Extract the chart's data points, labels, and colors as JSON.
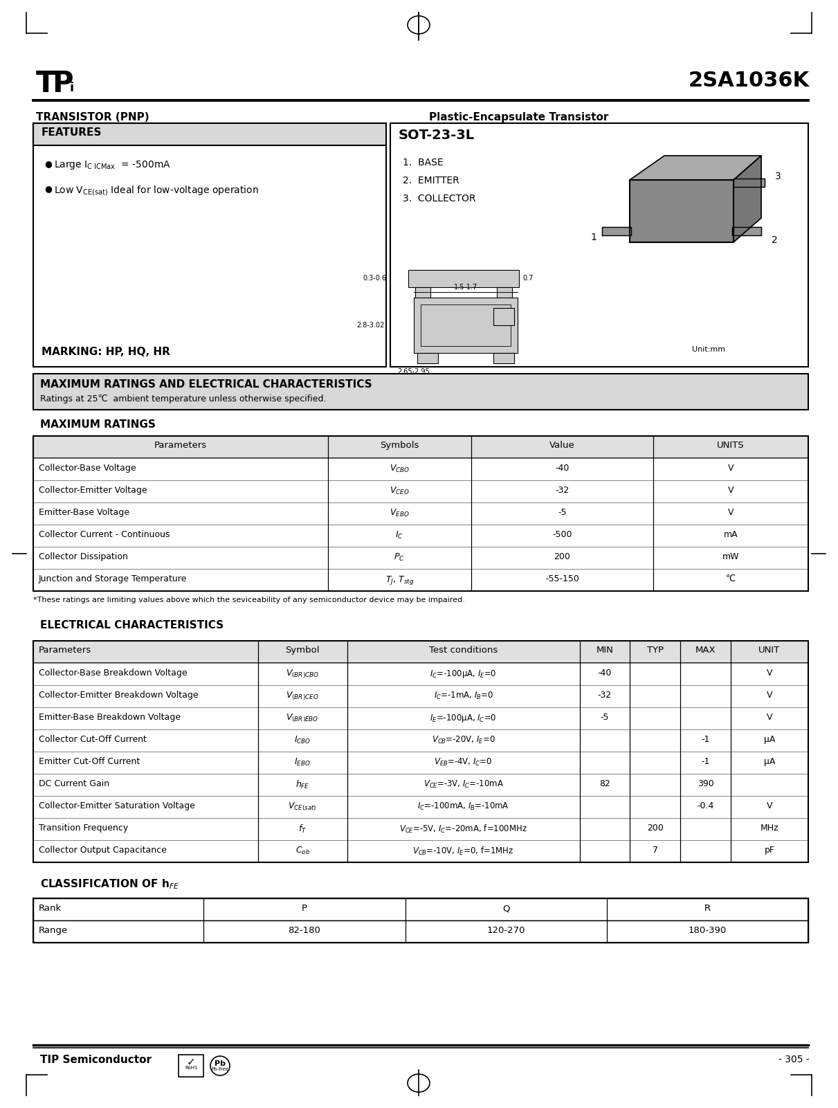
{
  "title": "2SA1036K",
  "transistor_type": "TRANSISTOR (PNP)",
  "package": "Plastic-Encapsulate Transistor",
  "package_type": "SOT-23-3L",
  "marking": "MARKING: HP, HQ, HR",
  "pins": [
    "BASE",
    "EMITTER",
    "COLLECTOR"
  ],
  "max_ratings_headers": [
    "Parameters",
    "Symbols",
    "Value",
    "UNITS"
  ],
  "max_ratings": [
    [
      "Collector-Base Voltage",
      "V_CBO",
      "-40",
      "V"
    ],
    [
      "Collector-Emitter Voltage",
      "V_CEO",
      "-32",
      "V"
    ],
    [
      "Emitter-Base Voltage",
      "V_EBO",
      "-5",
      "V"
    ],
    [
      "Collector Current - Continuous",
      "I_C",
      "-500",
      "mA"
    ],
    [
      "Collector Dissipation",
      "P_C",
      "200",
      "mW"
    ],
    [
      "Junction and Storage Temperature",
      "T_J, T_stg",
      "-55-150",
      "℃"
    ]
  ],
  "max_ratings_sym": [
    "V_{CBO}",
    "V_{CEO}",
    "V_{EBO}",
    "I_{C}",
    "P_{C}",
    "T_{J}, T_{stg}"
  ],
  "ratings_note": "*These ratings are limiting values above which the seviceability of any semiconductor device may be impaired.",
  "elec_char_headers": [
    "Parameters",
    "Symbol",
    "Test conditions",
    "MIN",
    "TYP",
    "MAX",
    "UNIT"
  ],
  "elec_char": [
    [
      "Collector-Base Breakdown Voltage",
      "V_{(BR)CBO}",
      "I_C=-100μA, I_E=0",
      "-40",
      "",
      "",
      "V"
    ],
    [
      "Collector-Emitter Breakdown Voltage",
      "V_{(BR)CEO}",
      "I_C=-1mA, I_B=0",
      "-32",
      "",
      "",
      "V"
    ],
    [
      "Emitter-Base Breakdown Voltage",
      "V_{(BR)EBO}",
      "I_E=-100μA, I_C=0",
      "-5",
      "",
      "",
      "V"
    ],
    [
      "Collector Cut-Off Current",
      "I_{CBO}",
      "V_{CB}=-20V, I_E=0",
      "",
      "",
      "-1",
      "μA"
    ],
    [
      "Emitter Cut-Off Current",
      "I_{EBO}",
      "V_{EB}=-4V, I_C=0",
      "",
      "",
      "-1",
      "μA"
    ],
    [
      "DC Current Gain",
      "h_{FE}",
      "V_{CE}=-3V, I_C=-10mA",
      "82",
      "",
      "390",
      ""
    ],
    [
      "Collector-Emitter Saturation Voltage",
      "V_{CE(sat)}",
      "I_C=-100mA, I_B=-10mA",
      "",
      "",
      "-0.4",
      "V"
    ],
    [
      "Transition Frequency",
      "f_T",
      "V_{CE}=-5V, I_C=-20mA, f=100MHz",
      "",
      "200",
      "",
      "MHz"
    ],
    [
      "Collector Output Capacitance",
      "C_{ob}",
      "V_{CB}=-10V, I_E=0, f=1MHz",
      "",
      "7",
      "",
      "pF"
    ]
  ],
  "hfe_class_headers": [
    "Rank",
    "P",
    "Q",
    "R"
  ],
  "hfe_class": [
    [
      "Range",
      "82-180",
      "120-270",
      "180-390"
    ]
  ],
  "footer_left": "TIP Semiconductor",
  "footer_right": "- 305 -"
}
